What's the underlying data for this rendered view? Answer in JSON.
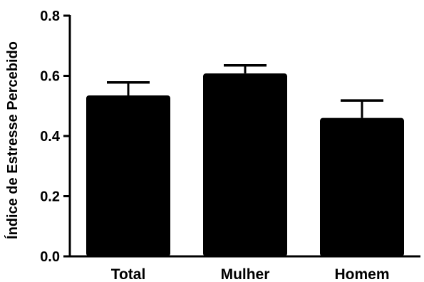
{
  "chart_data": {
    "type": "bar",
    "title": "",
    "xlabel": "",
    "ylabel": "Índice de Estresse Percebido",
    "categories": [
      "Total",
      "Mulher",
      "Homem"
    ],
    "values": [
      0.535,
      0.608,
      0.46
    ],
    "error_upper": [
      0.578,
      0.635,
      0.518
    ],
    "ylim": [
      0.0,
      0.8
    ],
    "yticks": [
      "0.0",
      "0.2",
      "0.4",
      "0.6",
      "0.8"
    ],
    "grid": false,
    "bar_color": "#000000"
  }
}
